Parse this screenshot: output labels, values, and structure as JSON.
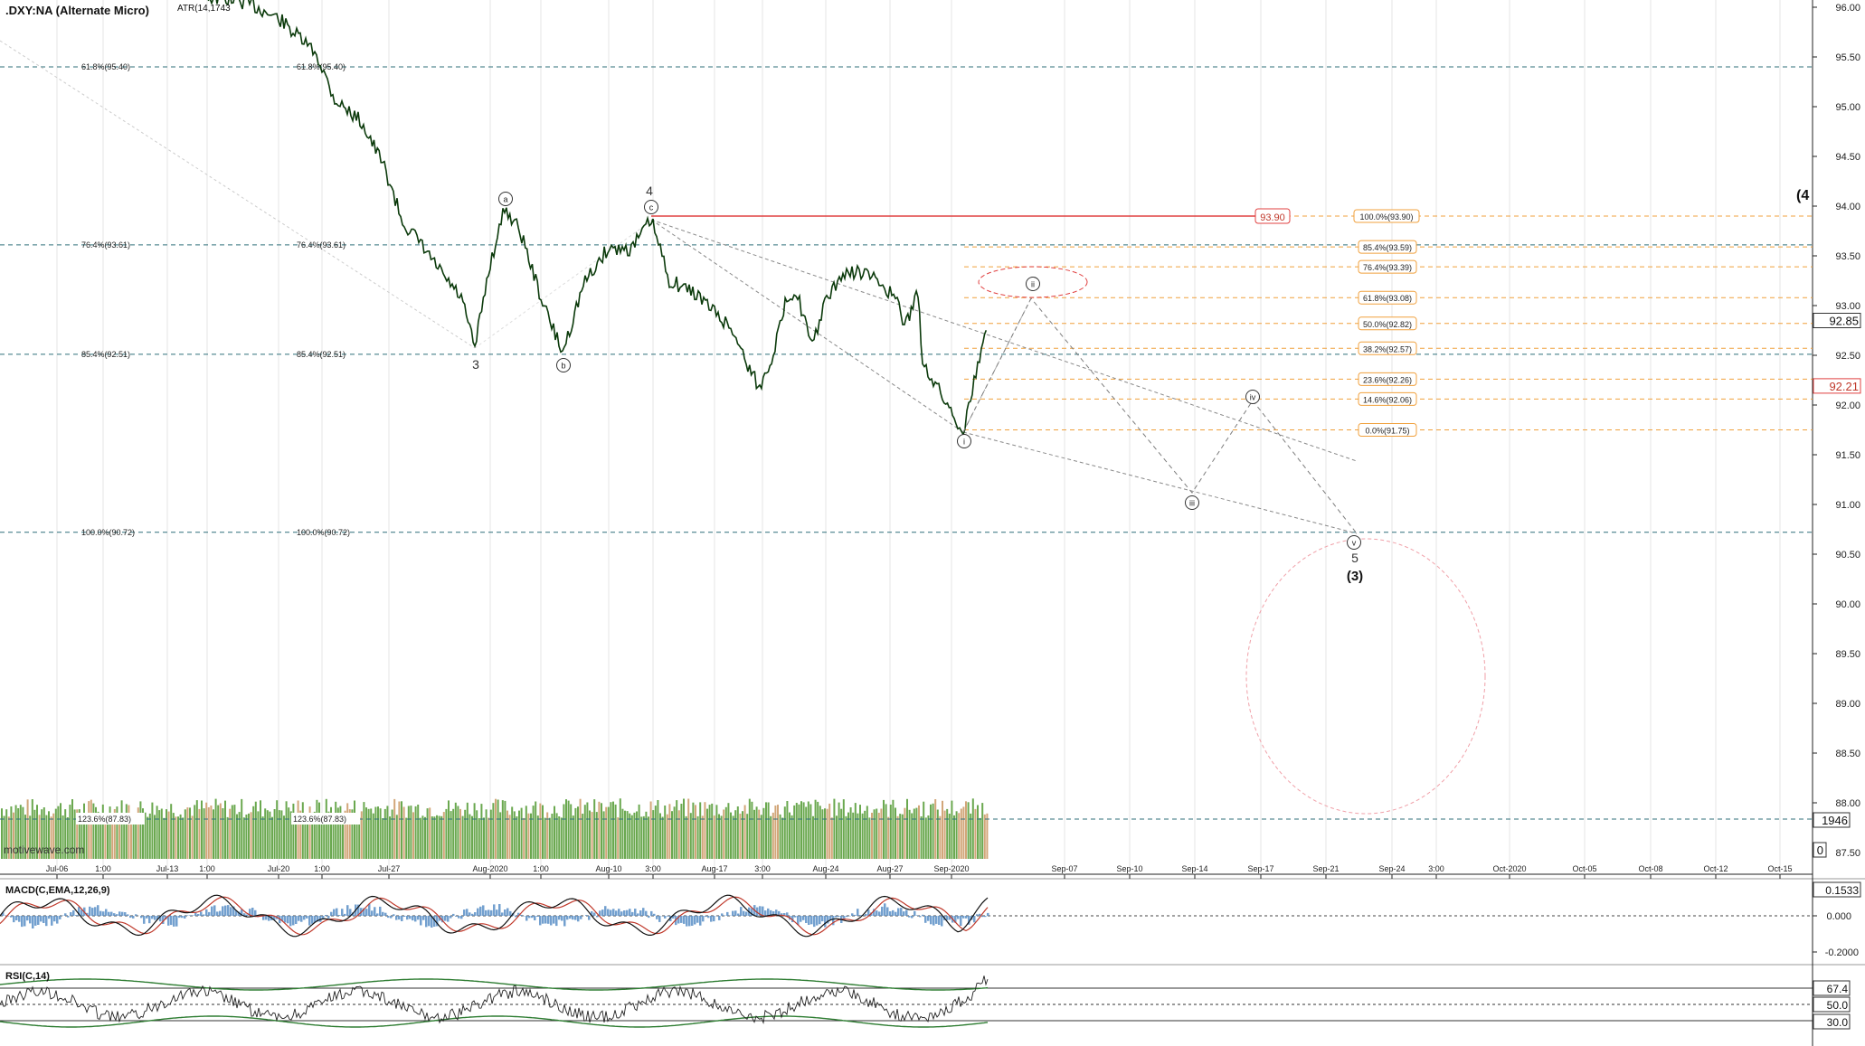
{
  "window": {
    "symbol_title": ".DXY:NA (Alternate Micro)",
    "atr_label": "ATR(14,1743",
    "watermark": "motivewave.com"
  },
  "colors": {
    "candle": "#0b3a0b",
    "fib_blue": "#2f6f7a",
    "fib_orange": "#f0a03c",
    "red_line": "#e04040",
    "volume_green": "#6aa84f",
    "volume_tan": "#d2a679",
    "macd_line": "#111111",
    "macd_signal": "#c0392b",
    "macd_hist": "#5b8fc7",
    "rsi_band": "#2e7d32",
    "projection": "#888888"
  },
  "price_axis": {
    "ticks": [
      "96.00",
      "95.50",
      "95.00",
      "94.50",
      "94.00",
      "93.50",
      "93.00",
      "92.50",
      "92.00",
      "91.50",
      "91.00",
      "90.50",
      "90.00",
      "89.50",
      "89.00",
      "88.50",
      "88.00",
      "87.50"
    ],
    "current_price": "92.85",
    "red_price": "92.21",
    "volume_value": "1946",
    "bottom_value": "0",
    "right_edge_label": "(4"
  },
  "time_axis": {
    "labels": [
      "Jul-06",
      "1:00",
      "Jul-13",
      "1:00",
      "Jul-20",
      "1:00",
      "Jul-27",
      "Aug-2020",
      "1:00",
      "Aug-10",
      "3:00",
      "Aug-17",
      "3:00",
      "Aug-24",
      "Aug-27",
      "Sep-2020",
      "Sep-07",
      "Sep-10",
      "Sep-14",
      "Sep-17",
      "Sep-21",
      "Sep-24",
      "3:00",
      "Oct-2020",
      "Oct-05",
      "Oct-08",
      "Oct-12",
      "Oct-15"
    ]
  },
  "fib_left": [
    {
      "label": "61.8%(95.40)",
      "price": 95.4
    },
    {
      "label": "76.4%(93.61)",
      "price": 93.61
    },
    {
      "label": "85.4%(92.51)",
      "price": 92.51
    },
    {
      "label": "100.0%(90.72)",
      "price": 90.72
    }
  ],
  "fib_left_bottom_label": "123.6%(87.83)",
  "fib_right": [
    {
      "label": "100.0%(93.90)",
      "price": 93.9
    },
    {
      "label": "85.4%(93.59)",
      "price": 93.59
    },
    {
      "label": "76.4%(93.39)",
      "price": 93.39
    },
    {
      "label": "61.8%(93.08)",
      "price": 93.08
    },
    {
      "label": "50.0%(92.82)",
      "price": 92.82
    },
    {
      "label": "38.2%(92.57)",
      "price": 92.57
    },
    {
      "label": "23.6%(92.26)",
      "price": 92.26
    },
    {
      "label": "14.6%(92.06)",
      "price": 92.06
    },
    {
      "label": "0.0%(91.75)",
      "price": 91.75
    }
  ],
  "red_level_label": "93.90",
  "waves": {
    "w3": "3",
    "wa": "a",
    "wb": "b",
    "w4": "4",
    "wc": "c",
    "wi": "i",
    "wii": "ii",
    "wiii": "iii",
    "wiv": "iv",
    "wv": "v",
    "w5": "5",
    "wp3": "(3)"
  },
  "macd": {
    "title": "MACD(C,EMA,12,26,9)",
    "value": "0.1533",
    "ticks": [
      "0.000",
      "-0.2000"
    ]
  },
  "rsi": {
    "title": "RSI(C,14)",
    "value": "67.4",
    "ticks": [
      "50.0",
      "30.0"
    ]
  },
  "chart_data": {
    "type": "line",
    "symbol": ".DXY:NA",
    "ylim": [
      87.5,
      96.0
    ],
    "price_path_approx": [
      {
        "x": "Jul-14",
        "y": 96.05
      },
      {
        "x": "Jul-20",
        "y": 95.6
      },
      {
        "x": "Jul-22",
        "y": 95.0
      },
      {
        "x": "Jul-24",
        "y": 94.4
      },
      {
        "x": "Jul-27",
        "y": 93.7
      },
      {
        "x": "Jul-31",
        "y": 92.6
      },
      {
        "x": "Aug-03",
        "y": 93.95
      },
      {
        "x": "Aug-06",
        "y": 92.55
      },
      {
        "x": "Aug-12",
        "y": 93.9
      },
      {
        "x": "Aug-17",
        "y": 92.6
      },
      {
        "x": "Aug-18",
        "y": 92.15
      },
      {
        "x": "Aug-20",
        "y": 93.2
      },
      {
        "x": "Aug-21",
        "y": 92.6
      },
      {
        "x": "Aug-22",
        "y": 93.4
      },
      {
        "x": "Aug-27",
        "y": 93.0
      },
      {
        "x": "Aug-28",
        "y": 92.3
      },
      {
        "x": "Sep-01",
        "y": 91.75
      },
      {
        "x": "Sep-03",
        "y": 92.85
      }
    ],
    "projection_path": [
      {
        "label": "i",
        "x": "Sep-01",
        "y": 91.75
      },
      {
        "label": "ii",
        "x": "Sep-04",
        "y": 93.1
      },
      {
        "label": "iii",
        "x": "Sep-14",
        "y": 91.15
      },
      {
        "label": "iv",
        "x": "Sep-17",
        "y": 92.1
      },
      {
        "label": "v",
        "x": "Sep-22",
        "y": 90.7
      }
    ],
    "red_level": 93.9,
    "current_price": 92.85
  }
}
